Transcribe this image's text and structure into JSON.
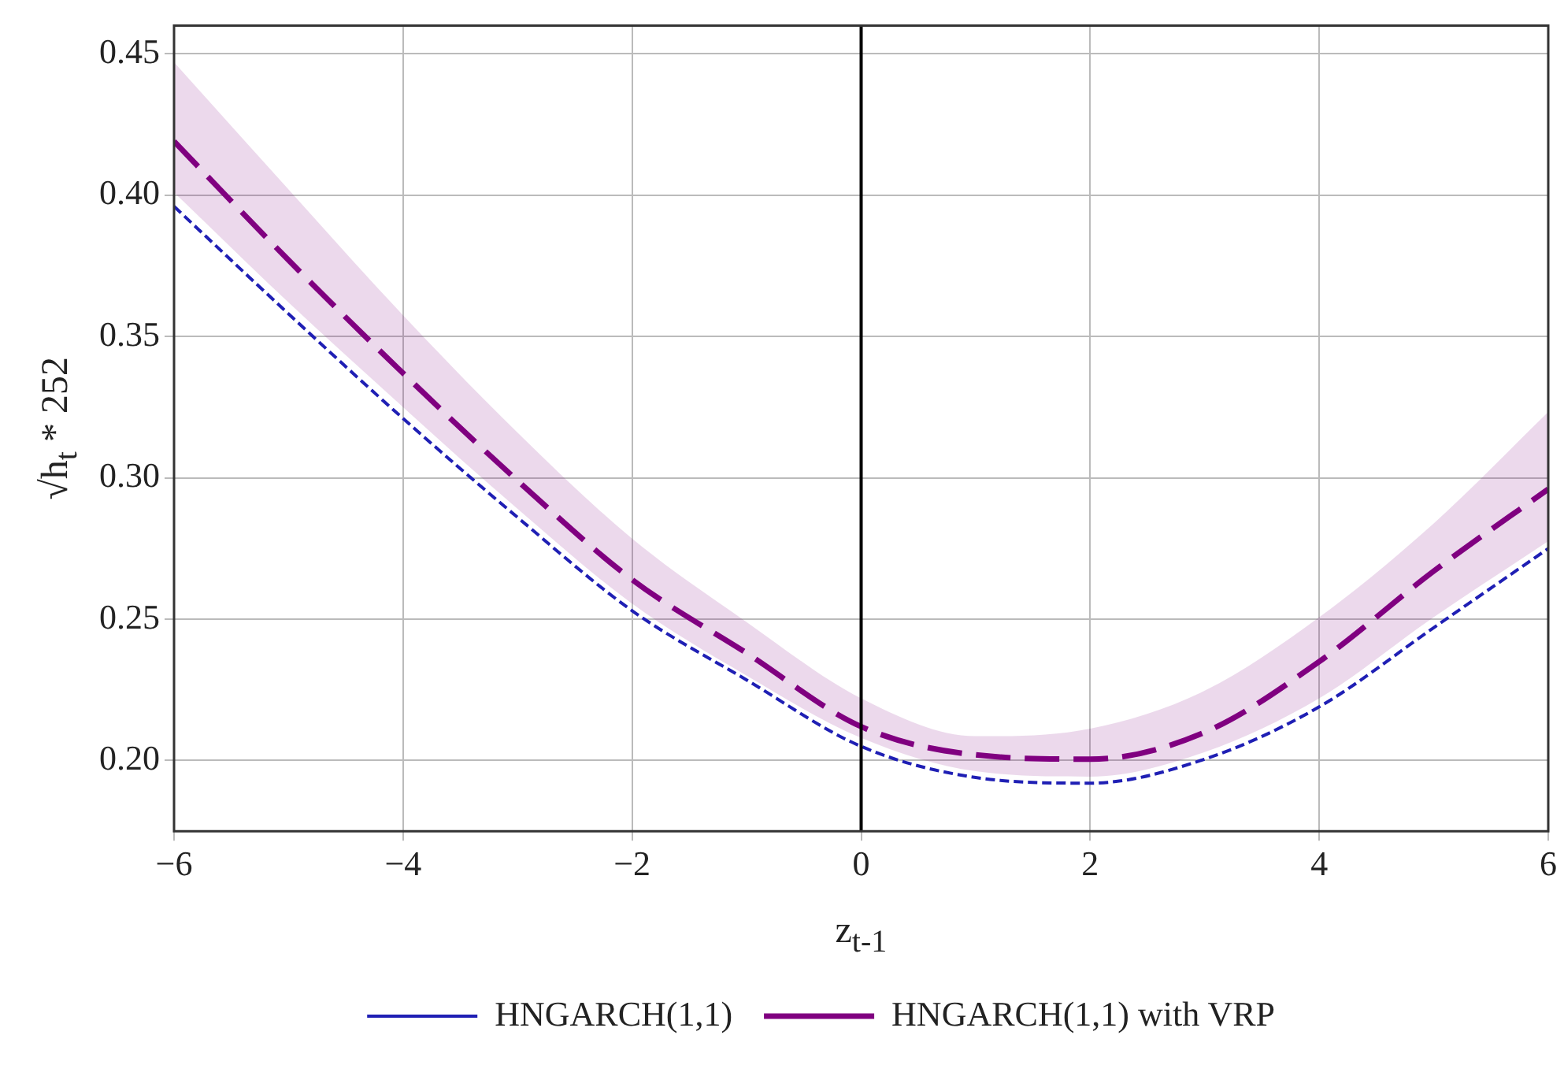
{
  "chart_data": {
    "type": "line",
    "xlabel": "z$_{t-1}$",
    "ylabel": "√h$_{t}$ * 252",
    "x": [
      -6,
      -5,
      -4,
      -3,
      -2,
      -1,
      0,
      1,
      2,
      3,
      4,
      5,
      6
    ],
    "series": [
      {
        "name": "HNGARCH(1,1)",
        "color": "#1f1fb4",
        "line_style": "dashed",
        "values": [
          0.396,
          0.358,
          0.321,
          0.286,
          0.253,
          0.2285,
          0.205,
          0.194,
          0.192,
          0.2005,
          0.219,
          0.247,
          0.275
        ]
      },
      {
        "name": "HNGARCH(1,1) with VRP",
        "color": "#800080",
        "line_style": "dashed",
        "values": [
          0.419,
          0.377,
          0.337,
          0.299,
          0.264,
          0.238,
          0.212,
          0.202,
          0.2005,
          0.21,
          0.235,
          0.267,
          0.296
        ],
        "lower": [
          0.401,
          0.362,
          0.325,
          0.289,
          0.2555,
          0.23,
          0.208,
          0.1962,
          0.1943,
          0.203,
          0.222,
          0.2507,
          0.2776
        ],
        "upper": [
          0.447,
          0.402,
          0.3575,
          0.316,
          0.2785,
          0.249,
          0.222,
          0.2086,
          0.2113,
          0.2247,
          0.2507,
          0.2839,
          0.3233
        ]
      }
    ],
    "xlim": [
      -6,
      6
    ],
    "xticks": [
      -6,
      -4,
      -2,
      0,
      2,
      4,
      6
    ],
    "ylim": [
      0.175,
      0.46
    ],
    "yticks": [
      {
        "value": 0.2,
        "label": "0.20"
      },
      0.25,
      {
        "value": 0.3,
        "label": "0.30"
      },
      0.35,
      {
        "value": 0.4,
        "label": "0.40"
      },
      0.45
    ],
    "ref_lines": [
      {
        "axis": "x",
        "value": 0,
        "color": "#000000"
      }
    ],
    "grid": true,
    "legend": "bottom",
    "marker": "none"
  }
}
